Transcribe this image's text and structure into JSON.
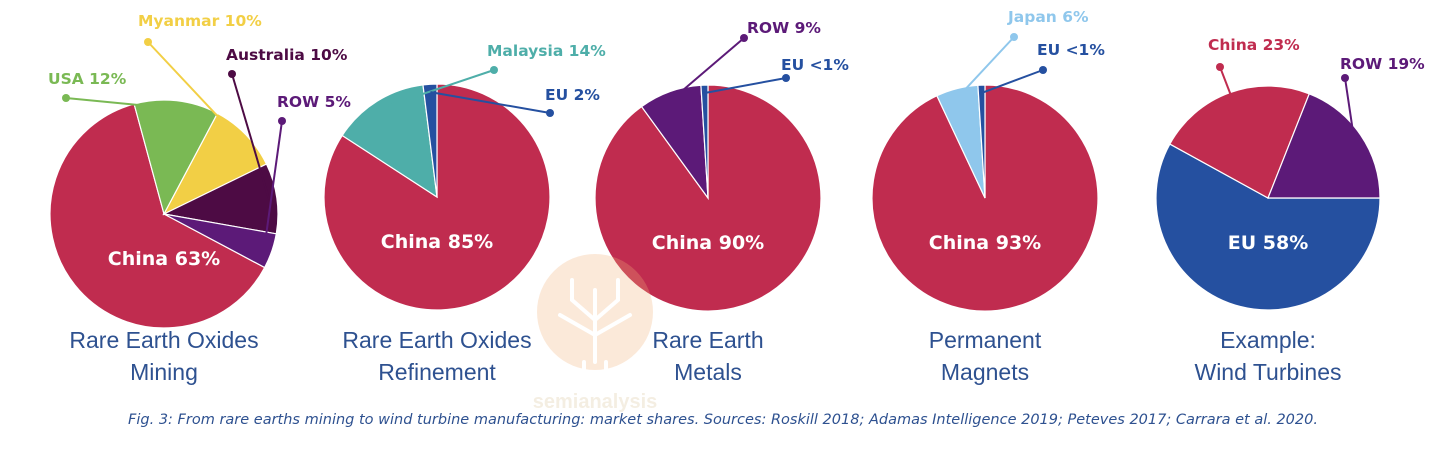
{
  "chart_data": [
    {
      "type": "pie",
      "title_lines": [
        "Rare Earth Oxides",
        "Mining"
      ],
      "center_label": "China 63%",
      "slices": [
        {
          "label": "China 63%",
          "value": 63,
          "color": "#c02c4f"
        },
        {
          "label": "USA 12%",
          "value": 12,
          "color": "#7ab954"
        },
        {
          "label": "Myanmar 10%",
          "value": 10,
          "color": "#f2cf45"
        },
        {
          "label": "Australia 10%",
          "value": 10,
          "color": "#4d0b44"
        },
        {
          "label": "ROW 5%",
          "value": 5,
          "color": "#5c1a78"
        }
      ]
    },
    {
      "type": "pie",
      "title_lines": [
        "Rare Earth Oxides",
        "Refinement"
      ],
      "center_label": "China 85%",
      "slices": [
        {
          "label": "China 85%",
          "value": 85,
          "color": "#c02c4f"
        },
        {
          "label": "Malaysia 14%",
          "value": 14,
          "color": "#4eaea9"
        },
        {
          "label": "EU 2%",
          "value": 2,
          "color": "#2550a0"
        }
      ]
    },
    {
      "type": "pie",
      "title_lines": [
        "Rare Earth",
        "Metals"
      ],
      "center_label": "China 90%",
      "slices": [
        {
          "label": "China 90%",
          "value": 90,
          "color": "#c02c4f"
        },
        {
          "label": "ROW 9%",
          "value": 9,
          "color": "#5c1a78"
        },
        {
          "label": "EU <1%",
          "value": 1,
          "color": "#2550a0"
        }
      ]
    },
    {
      "type": "pie",
      "title_lines": [
        "Permanent",
        "Magnets"
      ],
      "center_label": "China 93%",
      "slices": [
        {
          "label": "China 93%",
          "value": 93,
          "color": "#c02c4f"
        },
        {
          "label": "Japan 6%",
          "value": 6,
          "color": "#8fc7ec"
        },
        {
          "label": "EU <1%",
          "value": 1,
          "color": "#2550a0"
        }
      ]
    },
    {
      "type": "pie",
      "title_lines": [
        "Example:",
        "Wind Turbines"
      ],
      "center_label": "EU 58%",
      "slices": [
        {
          "label": "EU 58%",
          "value": 58,
          "color": "#2550a0"
        },
        {
          "label": "China 23%",
          "value": 23,
          "color": "#c02c4f"
        },
        {
          "label": "ROW 19%",
          "value": 19,
          "color": "#5c1a78"
        }
      ]
    }
  ],
  "caption": "Fig. 3: From rare earths mining to wind turbine manufacturing: market shares. Sources: Roskill 2018; Adamas Intelligence 2019; Peteves 2017; Carrara et al. 2020.",
  "watermark": {
    "text": "semianalysis"
  }
}
